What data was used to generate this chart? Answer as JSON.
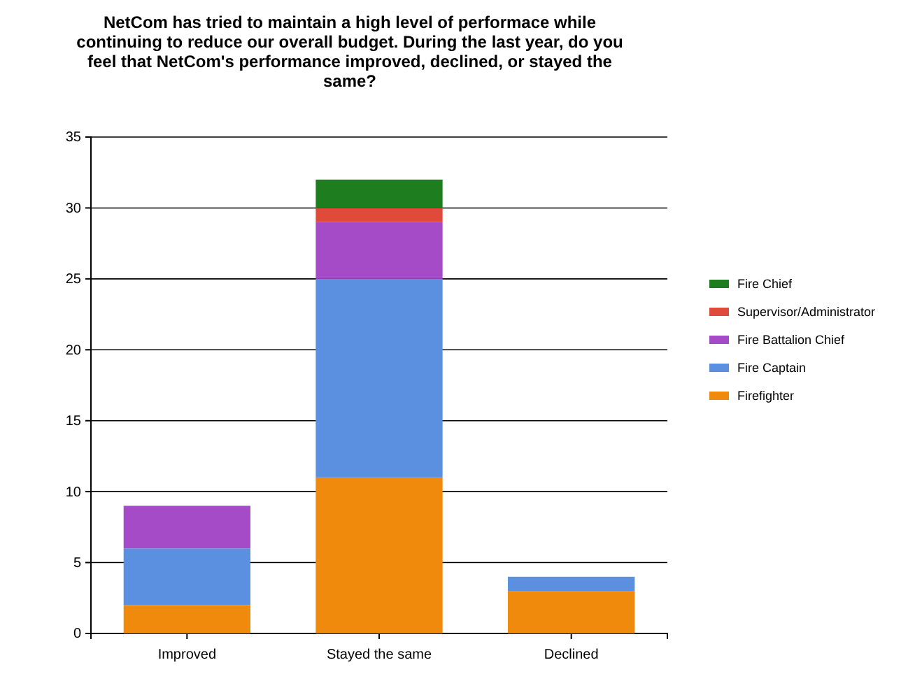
{
  "chart_data": {
    "type": "bar",
    "title": "NetCom has tried to maintain a high level of performace while continuing to reduce our overall budget.  During the last year, do you feel that NetCom's performance improved, declined, or stayed the same?",
    "categories": [
      "Improved",
      "Stayed the same",
      "Declined"
    ],
    "stacked": true,
    "series": [
      {
        "name": "Firefighter",
        "color": "#f08a0c",
        "values": [
          2,
          11,
          3
        ]
      },
      {
        "name": "Fire Captain",
        "color": "#5b8fe0",
        "values": [
          4,
          14,
          1
        ]
      },
      {
        "name": "Fire Battalion Chief",
        "color": "#a64bc8",
        "values": [
          3,
          4,
          0
        ]
      },
      {
        "name": "Supervisor/Administrator",
        "color": "#e04a3a",
        "values": [
          0,
          1,
          0
        ]
      },
      {
        "name": "Fire Chief",
        "color": "#1e7d1e",
        "values": [
          0,
          2,
          0
        ]
      }
    ],
    "ylim": [
      0,
      35
    ],
    "yticks": [
      0,
      5,
      10,
      15,
      20,
      25,
      30,
      35
    ],
    "grid": "y",
    "legend": "right"
  }
}
